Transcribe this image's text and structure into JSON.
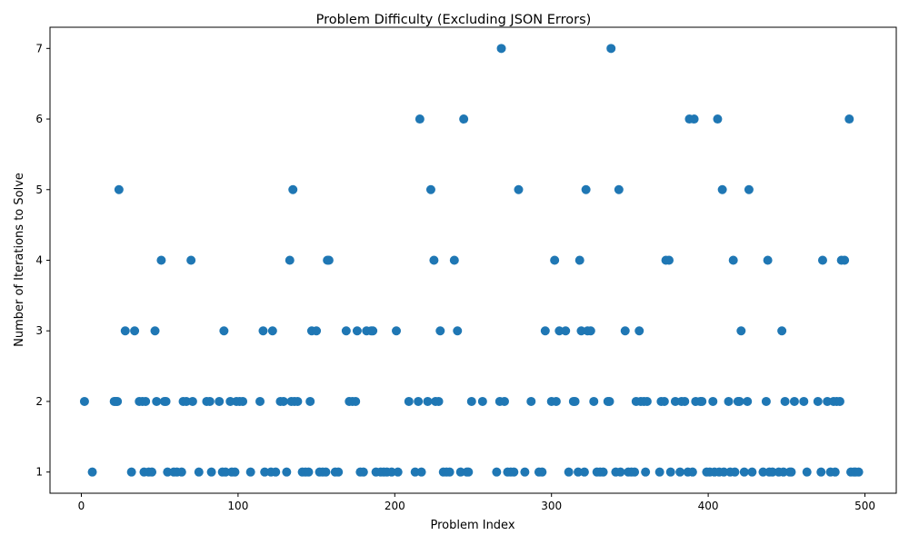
{
  "chart_data": {
    "type": "scatter",
    "title": "Problem Difficulty (Excluding JSON Errors)",
    "xlabel": "Problem Index",
    "ylabel": "Number of Iterations to Solve",
    "xlim": [
      -20,
      520
    ],
    "ylim": [
      0.7,
      7.3
    ],
    "xticks": [
      0,
      100,
      200,
      300,
      400,
      500
    ],
    "yticks": [
      1,
      2,
      3,
      4,
      5,
      6,
      7
    ],
    "grid": false,
    "marker_color": "#1f77b4",
    "series": [
      {
        "points": [
          [
            2,
            2
          ],
          [
            7,
            1
          ],
          [
            21,
            2
          ],
          [
            22,
            2
          ],
          [
            23,
            2
          ],
          [
            24,
            5
          ],
          [
            28,
            3
          ],
          [
            32,
            1
          ],
          [
            34,
            3
          ],
          [
            37,
            2
          ],
          [
            39,
            2
          ],
          [
            40,
            1
          ],
          [
            41,
            2
          ],
          [
            43,
            1
          ],
          [
            45,
            1
          ],
          [
            47,
            3
          ],
          [
            48,
            2
          ],
          [
            51,
            4
          ],
          [
            53,
            2
          ],
          [
            54,
            2
          ],
          [
            55,
            1
          ],
          [
            59,
            1
          ],
          [
            61,
            1
          ],
          [
            64,
            1
          ],
          [
            65,
            2
          ],
          [
            67,
            2
          ],
          [
            70,
            4
          ],
          [
            71,
            2
          ],
          [
            75,
            1
          ],
          [
            80,
            2
          ],
          [
            82,
            2
          ],
          [
            83,
            1
          ],
          [
            88,
            2
          ],
          [
            90,
            1
          ],
          [
            91,
            3
          ],
          [
            92,
            1
          ],
          [
            95,
            2
          ],
          [
            96,
            1
          ],
          [
            98,
            1
          ],
          [
            99,
            2
          ],
          [
            101,
            2
          ],
          [
            103,
            2
          ],
          [
            108,
            1
          ],
          [
            114,
            2
          ],
          [
            116,
            3
          ],
          [
            117,
            1
          ],
          [
            121,
            1
          ],
          [
            122,
            3
          ],
          [
            124,
            1
          ],
          [
            127,
            2
          ],
          [
            129,
            2
          ],
          [
            131,
            1
          ],
          [
            133,
            4
          ],
          [
            134,
            2
          ],
          [
            135,
            5
          ],
          [
            136,
            2
          ],
          [
            138,
            2
          ],
          [
            141,
            1
          ],
          [
            143,
            1
          ],
          [
            145,
            1
          ],
          [
            146,
            2
          ],
          [
            147,
            3
          ],
          [
            150,
            3
          ],
          [
            152,
            1
          ],
          [
            154,
            1
          ],
          [
            156,
            1
          ],
          [
            157,
            4
          ],
          [
            158,
            4
          ],
          [
            162,
            1
          ],
          [
            164,
            1
          ],
          [
            169,
            3
          ],
          [
            171,
            2
          ],
          [
            173,
            2
          ],
          [
            175,
            2
          ],
          [
            176,
            3
          ],
          [
            178,
            1
          ],
          [
            180,
            1
          ],
          [
            182,
            3
          ],
          [
            185,
            3
          ],
          [
            186,
            3
          ],
          [
            188,
            1
          ],
          [
            191,
            1
          ],
          [
            193,
            1
          ],
          [
            195,
            1
          ],
          [
            198,
            1
          ],
          [
            201,
            3
          ],
          [
            202,
            1
          ],
          [
            209,
            2
          ],
          [
            213,
            1
          ],
          [
            215,
            2
          ],
          [
            216,
            6
          ],
          [
            217,
            1
          ],
          [
            221,
            2
          ],
          [
            223,
            5
          ],
          [
            225,
            4
          ],
          [
            226,
            2
          ],
          [
            228,
            2
          ],
          [
            229,
            3
          ],
          [
            231,
            1
          ],
          [
            233,
            1
          ],
          [
            235,
            1
          ],
          [
            238,
            4
          ],
          [
            240,
            3
          ],
          [
            242,
            1
          ],
          [
            244,
            6
          ],
          [
            246,
            1
          ],
          [
            247,
            1
          ],
          [
            249,
            2
          ],
          [
            256,
            2
          ],
          [
            265,
            1
          ],
          [
            267,
            2
          ],
          [
            268,
            7
          ],
          [
            270,
            2
          ],
          [
            272,
            1
          ],
          [
            274,
            1
          ],
          [
            276,
            1
          ],
          [
            279,
            5
          ],
          [
            283,
            1
          ],
          [
            287,
            2
          ],
          [
            292,
            1
          ],
          [
            294,
            1
          ],
          [
            296,
            3
          ],
          [
            300,
            2
          ],
          [
            302,
            4
          ],
          [
            303,
            2
          ],
          [
            305,
            3
          ],
          [
            309,
            3
          ],
          [
            311,
            1
          ],
          [
            314,
            2
          ],
          [
            315,
            2
          ],
          [
            317,
            1
          ],
          [
            318,
            4
          ],
          [
            319,
            3
          ],
          [
            321,
            1
          ],
          [
            322,
            5
          ],
          [
            323,
            3
          ],
          [
            325,
            3
          ],
          [
            327,
            2
          ],
          [
            329,
            1
          ],
          [
            331,
            1
          ],
          [
            333,
            1
          ],
          [
            336,
            2
          ],
          [
            337,
            2
          ],
          [
            338,
            7
          ],
          [
            341,
            1
          ],
          [
            343,
            5
          ],
          [
            344,
            1
          ],
          [
            347,
            3
          ],
          [
            349,
            1
          ],
          [
            351,
            1
          ],
          [
            353,
            1
          ],
          [
            354,
            2
          ],
          [
            356,
            3
          ],
          [
            357,
            2
          ],
          [
            359,
            2
          ],
          [
            360,
            1
          ],
          [
            361,
            2
          ],
          [
            369,
            1
          ],
          [
            370,
            2
          ],
          [
            372,
            2
          ],
          [
            373,
            4
          ],
          [
            375,
            4
          ],
          [
            376,
            1
          ],
          [
            379,
            2
          ],
          [
            382,
            1
          ],
          [
            383,
            2
          ],
          [
            385,
            2
          ],
          [
            387,
            1
          ],
          [
            388,
            6
          ],
          [
            390,
            1
          ],
          [
            391,
            6
          ],
          [
            392,
            2
          ],
          [
            395,
            2
          ],
          [
            396,
            2
          ],
          [
            399,
            1
          ],
          [
            401,
            1
          ],
          [
            403,
            2
          ],
          [
            404,
            1
          ],
          [
            406,
            6
          ],
          [
            407,
            1
          ],
          [
            409,
            5
          ],
          [
            410,
            1
          ],
          [
            413,
            2
          ],
          [
            414,
            1
          ],
          [
            416,
            4
          ],
          [
            417,
            1
          ],
          [
            419,
            2
          ],
          [
            420,
            2
          ],
          [
            421,
            3
          ],
          [
            423,
            1
          ],
          [
            425,
            2
          ],
          [
            426,
            5
          ],
          [
            428,
            1
          ],
          [
            435,
            1
          ],
          [
            437,
            2
          ],
          [
            438,
            4
          ],
          [
            439,
            1
          ],
          [
            441,
            1
          ],
          [
            445,
            1
          ],
          [
            447,
            3
          ],
          [
            448,
            1
          ],
          [
            449,
            2
          ],
          [
            452,
            1
          ],
          [
            453,
            1
          ],
          [
            455,
            2
          ],
          [
            461,
            2
          ],
          [
            463,
            1
          ],
          [
            470,
            2
          ],
          [
            472,
            1
          ],
          [
            473,
            4
          ],
          [
            476,
            2
          ],
          [
            478,
            1
          ],
          [
            480,
            2
          ],
          [
            481,
            1
          ],
          [
            482,
            2
          ],
          [
            484,
            2
          ],
          [
            485,
            4
          ],
          [
            487,
            4
          ],
          [
            490,
            6
          ],
          [
            491,
            1
          ],
          [
            493,
            1
          ],
          [
            494,
            1
          ],
          [
            496,
            1
          ]
        ]
      }
    ]
  }
}
